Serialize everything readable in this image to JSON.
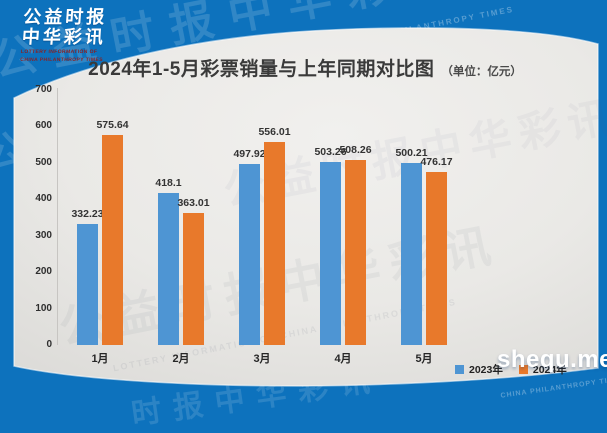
{
  "logo": {
    "line1": "公益时报",
    "line2": "中华彩讯",
    "sub1": "LOTTERY INFORMATION OF",
    "sub2": "CHINA PHILANTHROPY TIMES"
  },
  "title": {
    "main": "2024年1-5月彩票销量与上年同期对比图",
    "unit": "（单位：亿元）"
  },
  "chart_data": {
    "type": "bar",
    "categories": [
      "1月",
      "2月",
      "3月",
      "4月",
      "5月"
    ],
    "series": [
      {
        "name": "2023年",
        "color": "#4e95d3",
        "values": [
          332.23,
          418.1,
          497.92,
          503.26,
          500.21
        ]
      },
      {
        "name": "2024年",
        "color": "#e8792b",
        "values": [
          575.64,
          363.01,
          556.01,
          508.26,
          476.17
        ]
      }
    ],
    "title": "2024年1-5月彩票销量与上年同期对比图",
    "unit_label": "（单位：亿元）",
    "xlabel": "",
    "ylabel": "",
    "ylim": [
      0,
      700
    ],
    "yticks": [
      0,
      100,
      200,
      300,
      400,
      500,
      600,
      700
    ],
    "grid": false,
    "data_labels": true,
    "legend_position": "bottom-right"
  },
  "watermarks": {
    "brand_cn": "公益时报中华彩讯",
    "brand_cn_short": "时报中华彩讯",
    "brand_en": "INFORMATION OF CHINA PHILANTHROPY TIMES",
    "brand_en_full": "LOTTERY INFORMATION OF CHINA PHILANTHROPY TIMES",
    "site": "shequ.me"
  },
  "colors": {
    "background": "#0d72bd",
    "card": "#ebeae8",
    "bar_2023": "#4e95d3",
    "bar_2024": "#e8792b",
    "logo_text": "#ffffff",
    "logo_subtext": "#8d1f1f"
  }
}
